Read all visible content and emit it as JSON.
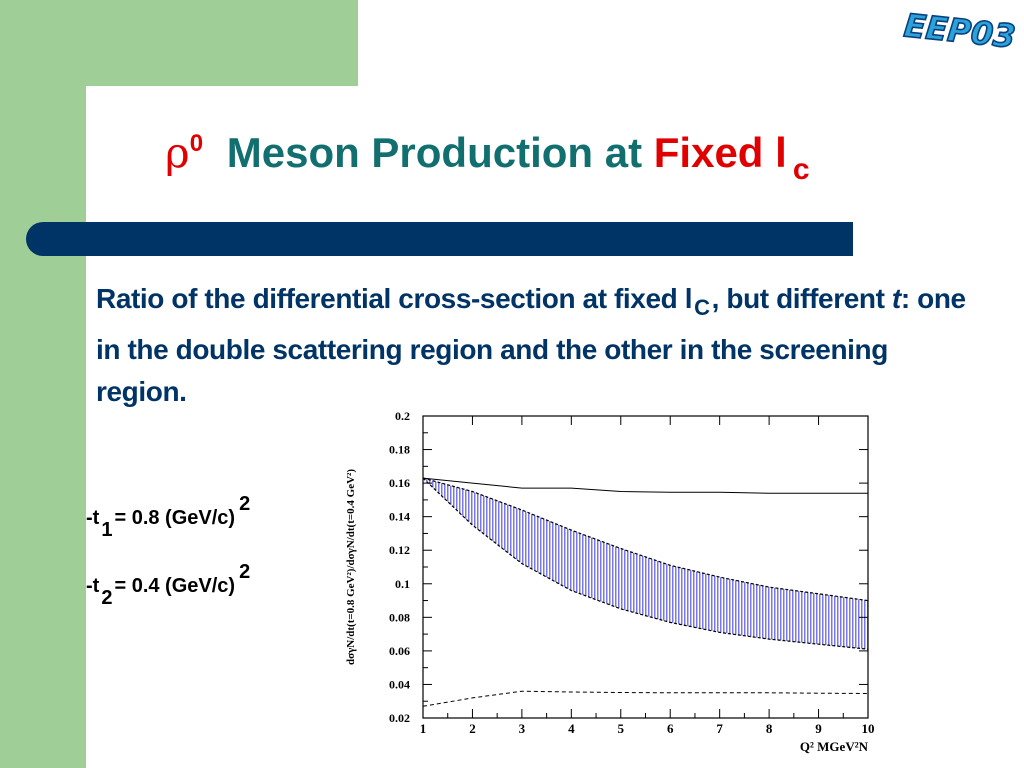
{
  "logo": {
    "text": "EEP03"
  },
  "title": {
    "rho": "ρ",
    "rho_sup": "0",
    "main": "Meson Production at",
    "fixed": "Fixed l",
    "sub": "c"
  },
  "caption": {
    "part1": "Ratio of the differential cross-section at fixed l",
    "sub": "C",
    "part2": ", but different",
    "t_italic": "t",
    "part3": ": one in the double scattering region and the other in the screening region."
  },
  "labels": {
    "t1": {
      "prefix": "-t",
      "sub": "1",
      "eq": "= 0.8 (GeV/c)",
      "sup": "2"
    },
    "t2": {
      "prefix": "-t",
      "sub": "2",
      "eq": "= 0.4 (GeV/c)",
      "sup": "2"
    }
  },
  "chart_data": {
    "type": "line",
    "xlabel": "Q² MGeV²N",
    "ylabel": "dσγN/dt(t=0.8 GeV²)/dσγN/dt(t=0.4 GeV²)",
    "xlim": [
      1,
      10
    ],
    "ylim": [
      0.02,
      0.2
    ],
    "x_ticks": [
      1,
      2,
      3,
      4,
      5,
      6,
      7,
      8,
      9,
      10
    ],
    "y_ticks": [
      0.02,
      0.04,
      0.06,
      0.08,
      0.1,
      0.12,
      0.14,
      0.16,
      0.18,
      0.2
    ],
    "y_tick_labels": [
      "0.02",
      "0.04",
      "0.06",
      "0.08",
      "0.1",
      "0.12",
      "0.14",
      "0.16",
      "0.18",
      "0.2"
    ],
    "fill_color": "#6f6fe8",
    "series": [
      {
        "style": "solid",
        "x": [
          1,
          2,
          3,
          4,
          5,
          6,
          7,
          8,
          9,
          10
        ],
        "y": [
          0.163,
          0.16,
          0.157,
          0.157,
          0.155,
          0.1545,
          0.1545,
          0.154,
          0.154,
          0.154
        ]
      },
      {
        "style": "dashed",
        "x": [
          1,
          2,
          3,
          4,
          5,
          6,
          7,
          8,
          9,
          10
        ],
        "y": [
          0.027,
          0.032,
          0.036,
          0.0355,
          0.0352,
          0.035,
          0.035,
          0.035,
          0.0348,
          0.0346
        ]
      },
      {
        "style": "band_upper",
        "x": [
          1,
          2,
          3,
          4,
          5,
          6,
          7,
          8,
          9,
          10
        ],
        "y": [
          0.163,
          0.155,
          0.144,
          0.132,
          0.121,
          0.111,
          0.104,
          0.098,
          0.094,
          0.09
        ]
      },
      {
        "style": "band_lower",
        "x": [
          1,
          2,
          3,
          4,
          5,
          6,
          7,
          8,
          9,
          10
        ],
        "y": [
          0.163,
          0.135,
          0.112,
          0.096,
          0.085,
          0.077,
          0.071,
          0.067,
          0.064,
          0.061
        ]
      }
    ]
  }
}
